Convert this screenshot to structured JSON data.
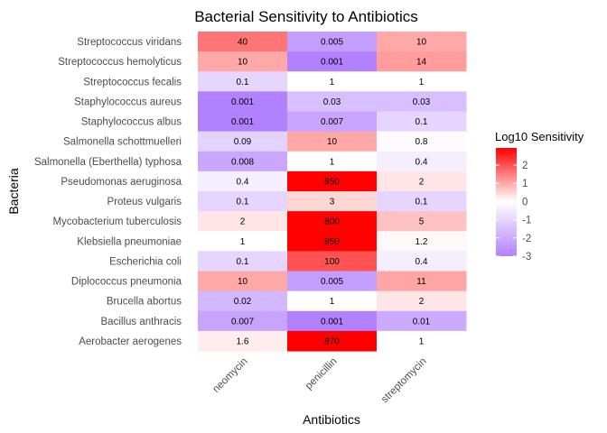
{
  "chart_data": {
    "type": "heatmap",
    "title": "Bacterial Sensitivity to Antibiotics",
    "xlabel": "Antibiotics",
    "ylabel": "Bacteria",
    "columns": [
      "neomycin",
      "penicillin",
      "streptomycin"
    ],
    "rows": [
      {
        "name": "Streptococcus viridans",
        "values": [
          40,
          0.005,
          10
        ],
        "labels": [
          "40",
          "0.005",
          "10"
        ]
      },
      {
        "name": "Streptococcus hemolyticus",
        "values": [
          10,
          0.001,
          14
        ],
        "labels": [
          "10",
          "0.001",
          "14"
        ]
      },
      {
        "name": "Streptococcus fecalis",
        "values": [
          0.1,
          1,
          1
        ],
        "labels": [
          "0.1",
          "1",
          "1"
        ]
      },
      {
        "name": "Staphylococcus aureus",
        "values": [
          0.001,
          0.03,
          0.03
        ],
        "labels": [
          "0.001",
          "0.03",
          "0.03"
        ]
      },
      {
        "name": "Staphylococcus albus",
        "values": [
          0.001,
          0.007,
          0.1
        ],
        "labels": [
          "0.001",
          "0.007",
          "0.1"
        ]
      },
      {
        "name": "Salmonella schottmuelleri",
        "values": [
          0.09,
          10,
          0.8
        ],
        "labels": [
          "0.09",
          "10",
          "0.8"
        ]
      },
      {
        "name": "Salmonella (Eberthella) typhosa",
        "values": [
          0.008,
          1,
          0.4
        ],
        "labels": [
          "0.008",
          "1",
          "0.4"
        ]
      },
      {
        "name": "Pseudomonas aeruginosa",
        "values": [
          0.4,
          850,
          2
        ],
        "labels": [
          "0.4",
          "850",
          "2"
        ]
      },
      {
        "name": "Proteus vulgaris",
        "values": [
          0.1,
          3,
          0.1
        ],
        "labels": [
          "0.1",
          "3",
          "0.1"
        ]
      },
      {
        "name": "Mycobacterium tuberculosis",
        "values": [
          2,
          800,
          5
        ],
        "labels": [
          "2",
          "800",
          "5"
        ]
      },
      {
        "name": "Klebsiella pneumoniae",
        "values": [
          1,
          850,
          1.2
        ],
        "labels": [
          "1",
          "850",
          "1.2"
        ]
      },
      {
        "name": "Escherichia coli",
        "values": [
          0.1,
          100,
          0.4
        ],
        "labels": [
          "0.1",
          "100",
          "0.4"
        ]
      },
      {
        "name": "Diplococcus pneumonia",
        "values": [
          10,
          0.005,
          11
        ],
        "labels": [
          "10",
          "0.005",
          "11"
        ]
      },
      {
        "name": "Brucella abortus",
        "values": [
          0.02,
          1,
          2
        ],
        "labels": [
          "0.02",
          "1",
          "2"
        ]
      },
      {
        "name": "Bacillus anthracis",
        "values": [
          0.007,
          0.001,
          0.01
        ],
        "labels": [
          "0.007",
          "0.001",
          "0.01"
        ]
      },
      {
        "name": "Aerobacter aerogenes",
        "values": [
          1.6,
          870,
          1
        ],
        "labels": [
          "1.6",
          "870",
          "1"
        ]
      }
    ],
    "color_scale": {
      "title": "Log10 Sensitivity",
      "low_color": "#b281ff",
      "mid_color": "#ffffff",
      "high_color": "#ff0000",
      "range": [
        -3,
        2.94
      ],
      "midpoint": 0,
      "ticks": [
        2,
        1,
        0,
        -1,
        -2,
        -3
      ],
      "tick_labels": [
        "2",
        "1",
        "0",
        "-1",
        "-2",
        "-3"
      ]
    },
    "legend_position": "right",
    "grid": true
  }
}
